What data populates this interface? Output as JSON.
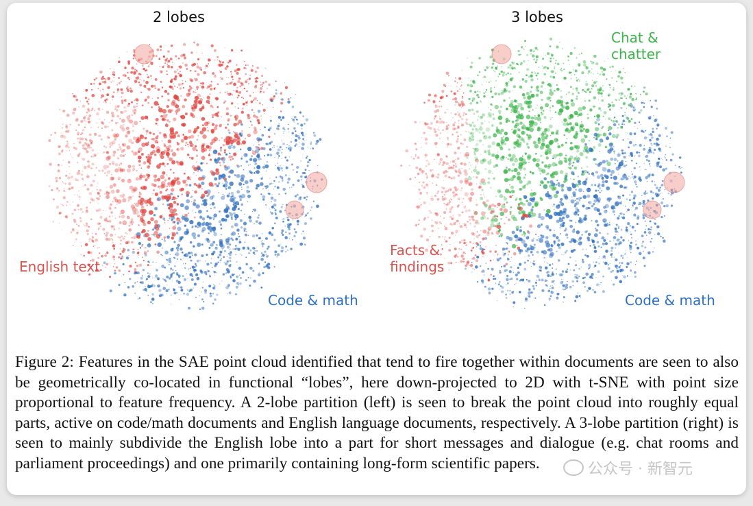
{
  "figure": {
    "panels": [
      {
        "title": "2 lobes",
        "labels": [
          {
            "text": "English text",
            "color": "#d9534f"
          },
          {
            "text": "Code & math",
            "color": "#2f6fbf"
          }
        ]
      },
      {
        "title": "3 lobes",
        "labels": [
          {
            "text": "Chat &\nchatter",
            "color": "#3cb44b"
          },
          {
            "text": "Facts &\nfindings",
            "color": "#d9534f"
          },
          {
            "text": "Code & math",
            "color": "#2f6fbf"
          }
        ]
      }
    ],
    "colors": {
      "red": "#e0453f",
      "blue": "#2f6fbf",
      "green": "#3cb44b",
      "highlight": "#f2a6a0"
    }
  },
  "caption": {
    "text": "Figure 2: Features in the SAE point cloud identified that tend to fire together within documents are seen to also be geometrically co-located in functional “lobes”, here down-projected to 2D with t-SNE with point size proportional to feature frequency. A 2-lobe partition (left) is seen to break the point cloud into roughly equal parts, active on code/math documents and English language documents, respectively. A 3-lobe partition (right) is seen to mainly subdivide the English lobe into a part for short messages and dialogue (e.g. chat rooms and parliament proceedings) and one primarily containing long-form scientific papers."
  },
  "watermark": {
    "text": "公众号 · 新智元"
  }
}
